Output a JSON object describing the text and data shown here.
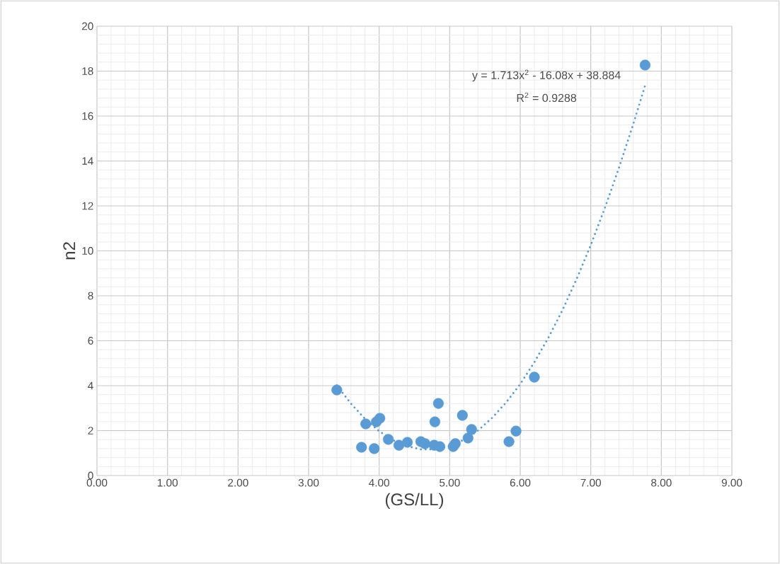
{
  "chart_data": {
    "type": "scatter",
    "xlabel": "(GS/LL)",
    "ylabel": "n2",
    "xlim": [
      0,
      9
    ],
    "ylim": [
      0,
      20
    ],
    "xticks": [
      {
        "value": 0,
        "label": "0.00"
      },
      {
        "value": 1,
        "label": "1.00"
      },
      {
        "value": 2,
        "label": "2.00"
      },
      {
        "value": 3,
        "label": "3.00"
      },
      {
        "value": 4,
        "label": "4.00"
      },
      {
        "value": 5,
        "label": "5.00"
      },
      {
        "value": 6,
        "label": "6.00"
      },
      {
        "value": 7,
        "label": "7.00"
      },
      {
        "value": 8,
        "label": "8.00"
      },
      {
        "value": 9,
        "label": "9.00"
      }
    ],
    "yticks": [
      0,
      2,
      4,
      6,
      8,
      10,
      12,
      14,
      16,
      18,
      20
    ],
    "grid": true,
    "marker": "circle",
    "annotations": [
      "y = 1.713x$^{2}$ - 16.08x + 38.884",
      "R$^{2}$ = 0.9288"
    ],
    "series": [
      {
        "color": "#5b9bd5",
        "x": [
          3.4,
          3.75,
          3.81,
          3.93,
          3.96,
          4.01,
          4.13,
          4.28,
          4.4,
          4.59,
          4.65,
          4.78,
          4.79,
          4.84,
          4.86,
          5.05,
          5.08,
          5.18,
          5.26,
          5.31,
          5.84,
          5.94,
          6.2,
          7.77
        ],
        "values": [
          3.81,
          1.26,
          2.3,
          1.2,
          2.39,
          2.55,
          1.61,
          1.35,
          1.48,
          1.51,
          1.42,
          1.35,
          2.39,
          3.21,
          1.29,
          1.29,
          1.42,
          2.68,
          1.67,
          2.05,
          1.51,
          1.98,
          4.38,
          18.27
        ]
      },
      {
        "type": "line",
        "marker": "none",
        "line_style": "dotted",
        "color": "#5b9bd5",
        "x": [
          3.4,
          3.6,
          3.8,
          4.0,
          4.2,
          4.4,
          4.6,
          4.8,
          5.0,
          5.2,
          5.4,
          5.6,
          5.8,
          6.0,
          6.2,
          6.4,
          6.6,
          6.8,
          7.0,
          7.2,
          7.4,
          7.6,
          7.77
        ],
        "values": [
          4.01,
          3.2,
          2.52,
          1.97,
          1.57,
          1.3,
          1.16,
          1.17,
          1.31,
          1.59,
          2.0,
          2.56,
          3.25,
          4.07,
          5.04,
          6.14,
          7.37,
          8.75,
          10.26,
          11.91,
          13.7,
          15.62,
          17.36
        ]
      }
    ]
  }
}
